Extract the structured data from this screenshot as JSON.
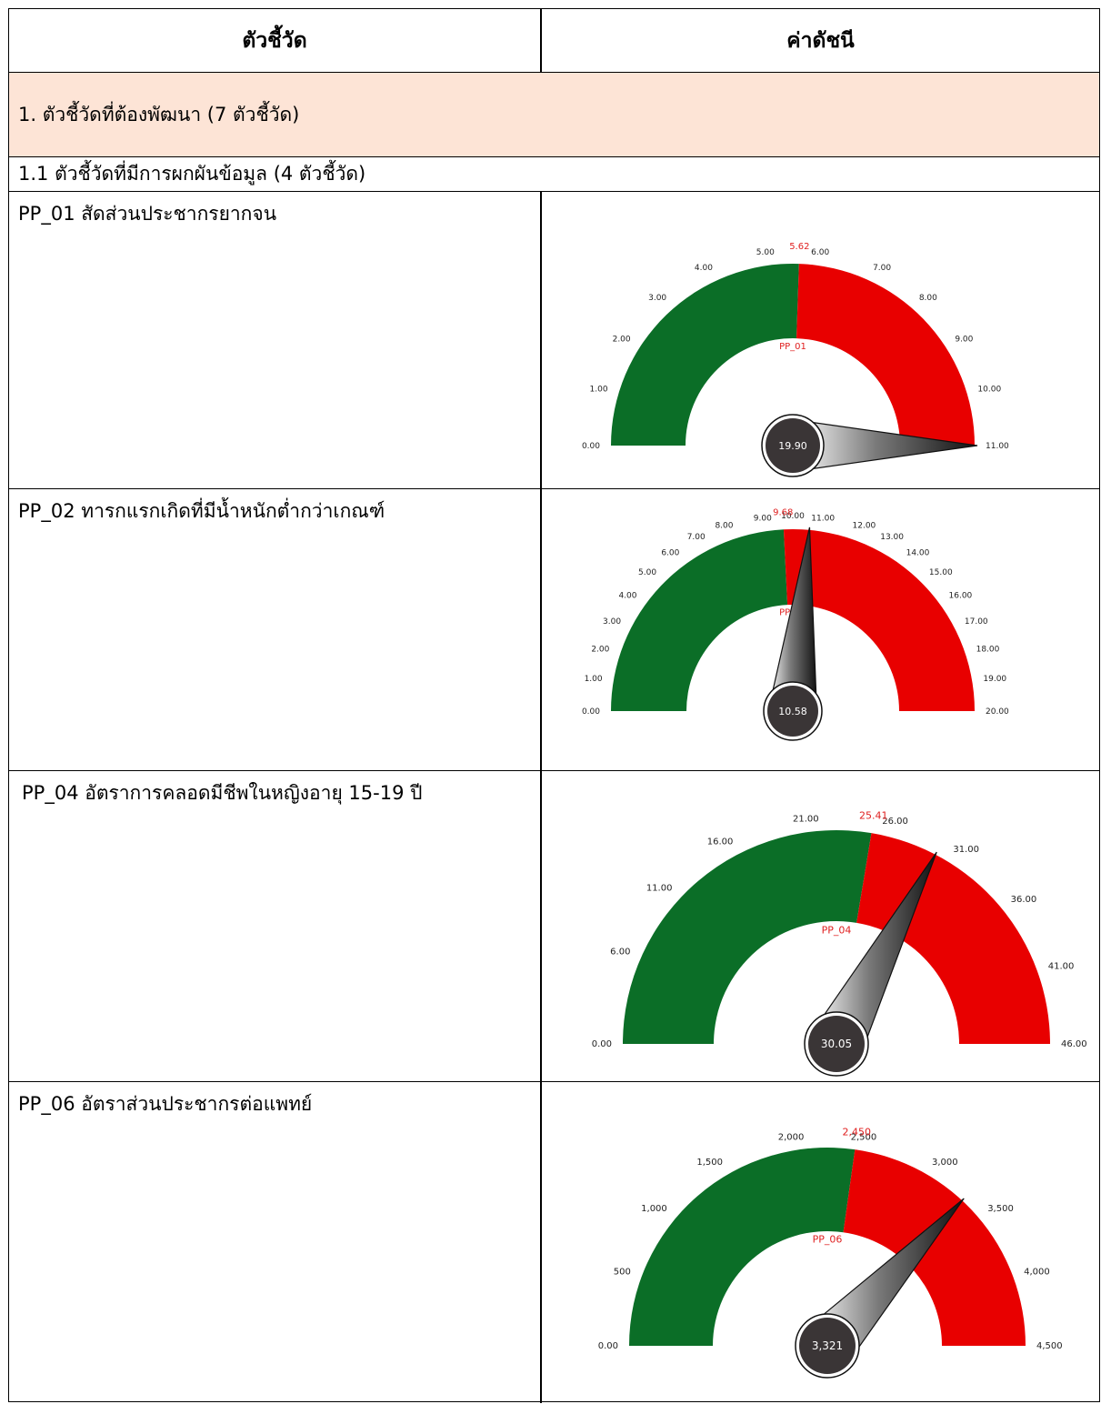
{
  "table": {
    "header": {
      "indicator_col": "ตัวชี้วัด",
      "index_col": "ค่าดัชนี"
    },
    "section": "1. ตัวชี้วัดที่ต้องพัฒนา (7 ตัวชี้วัด)",
    "subsection": "1.1 ตัวชี้วัดที่มีการผกผันข้อมูล (4 ตัวชี้วัด)",
    "rows": [
      {
        "label": "PP_01 สัดส่วนประชากรยากจน"
      },
      {
        "label": "PP_02 ทารกแรกเกิดที่มีน้ำหนักต่ำกว่าเกณฑ์"
      },
      {
        "label": "PP_04 อัตราการคลอดมีชีพในหญิงอายุ 15-19 ปี"
      },
      {
        "label": "PP_06 อัตราส่วนประชากรต่อแพทย์"
      }
    ]
  },
  "colors": {
    "green": "#0b6e27",
    "red": "#e80000",
    "hub": "#3a3536",
    "band": "#fde4d6",
    "label_red": "#e02020"
  },
  "chart_data": [
    {
      "type": "gauge",
      "title": "PP_01",
      "min": 0,
      "max": 11,
      "threshold": 5.62,
      "threshold_label": "5.62",
      "value": 19.9,
      "value_label": "19.90",
      "ticks": [
        0,
        1,
        2,
        3,
        4,
        5,
        6,
        7,
        8,
        9,
        10,
        11
      ],
      "tick_labels": [
        "0.00",
        "1.00",
        "2.00",
        "3.00",
        "4.00",
        "5.00",
        "6.00",
        "7.00",
        "8.00",
        "9.00",
        "10.00",
        "11.00"
      ]
    },
    {
      "type": "gauge",
      "title": "PP_02",
      "min": 0,
      "max": 20,
      "threshold": 9.68,
      "threshold_label": "9.68",
      "value": 10.58,
      "value_label": "10.58",
      "ticks": [
        0,
        1,
        2,
        3,
        4,
        5,
        6,
        7,
        8,
        9,
        10,
        11,
        12,
        13,
        14,
        15,
        16,
        17,
        18,
        19,
        20
      ],
      "tick_labels": [
        "0.00",
        "1.00",
        "2.00",
        "3.00",
        "4.00",
        "5.00",
        "6.00",
        "7.00",
        "8.00",
        "9.00",
        "10.00",
        "11.00",
        "12.00",
        "13.00",
        "14.00",
        "15.00",
        "16.00",
        "17.00",
        "18.00",
        "19.00",
        "20.00"
      ]
    },
    {
      "type": "gauge",
      "title": "PP_04",
      "min": 0,
      "max": 46,
      "threshold": 25.41,
      "threshold_label": "25.41",
      "value": 30.05,
      "value_label": "30.05",
      "ticks": [
        0,
        6,
        11,
        16,
        21,
        26,
        31,
        36,
        41,
        46
      ],
      "tick_labels": [
        "0.00",
        "6.00",
        "11.00",
        "16.00",
        "21.00",
        "26.00",
        "31.00",
        "36.00",
        "41.00",
        "46.00"
      ]
    },
    {
      "type": "gauge",
      "title": "PP_06",
      "min": 0,
      "max": 4500,
      "threshold": 2450,
      "threshold_label": "2,450",
      "value": 3321,
      "value_label": "3,321",
      "ticks": [
        0,
        500,
        1000,
        1500,
        2000,
        2500,
        3000,
        3500,
        4000,
        4500
      ],
      "tick_labels": [
        "0.00",
        "500",
        "1,000",
        "1,500",
        "2,000",
        "2,500",
        "3,000",
        "3,500",
        "4,000",
        "4,500"
      ]
    }
  ]
}
